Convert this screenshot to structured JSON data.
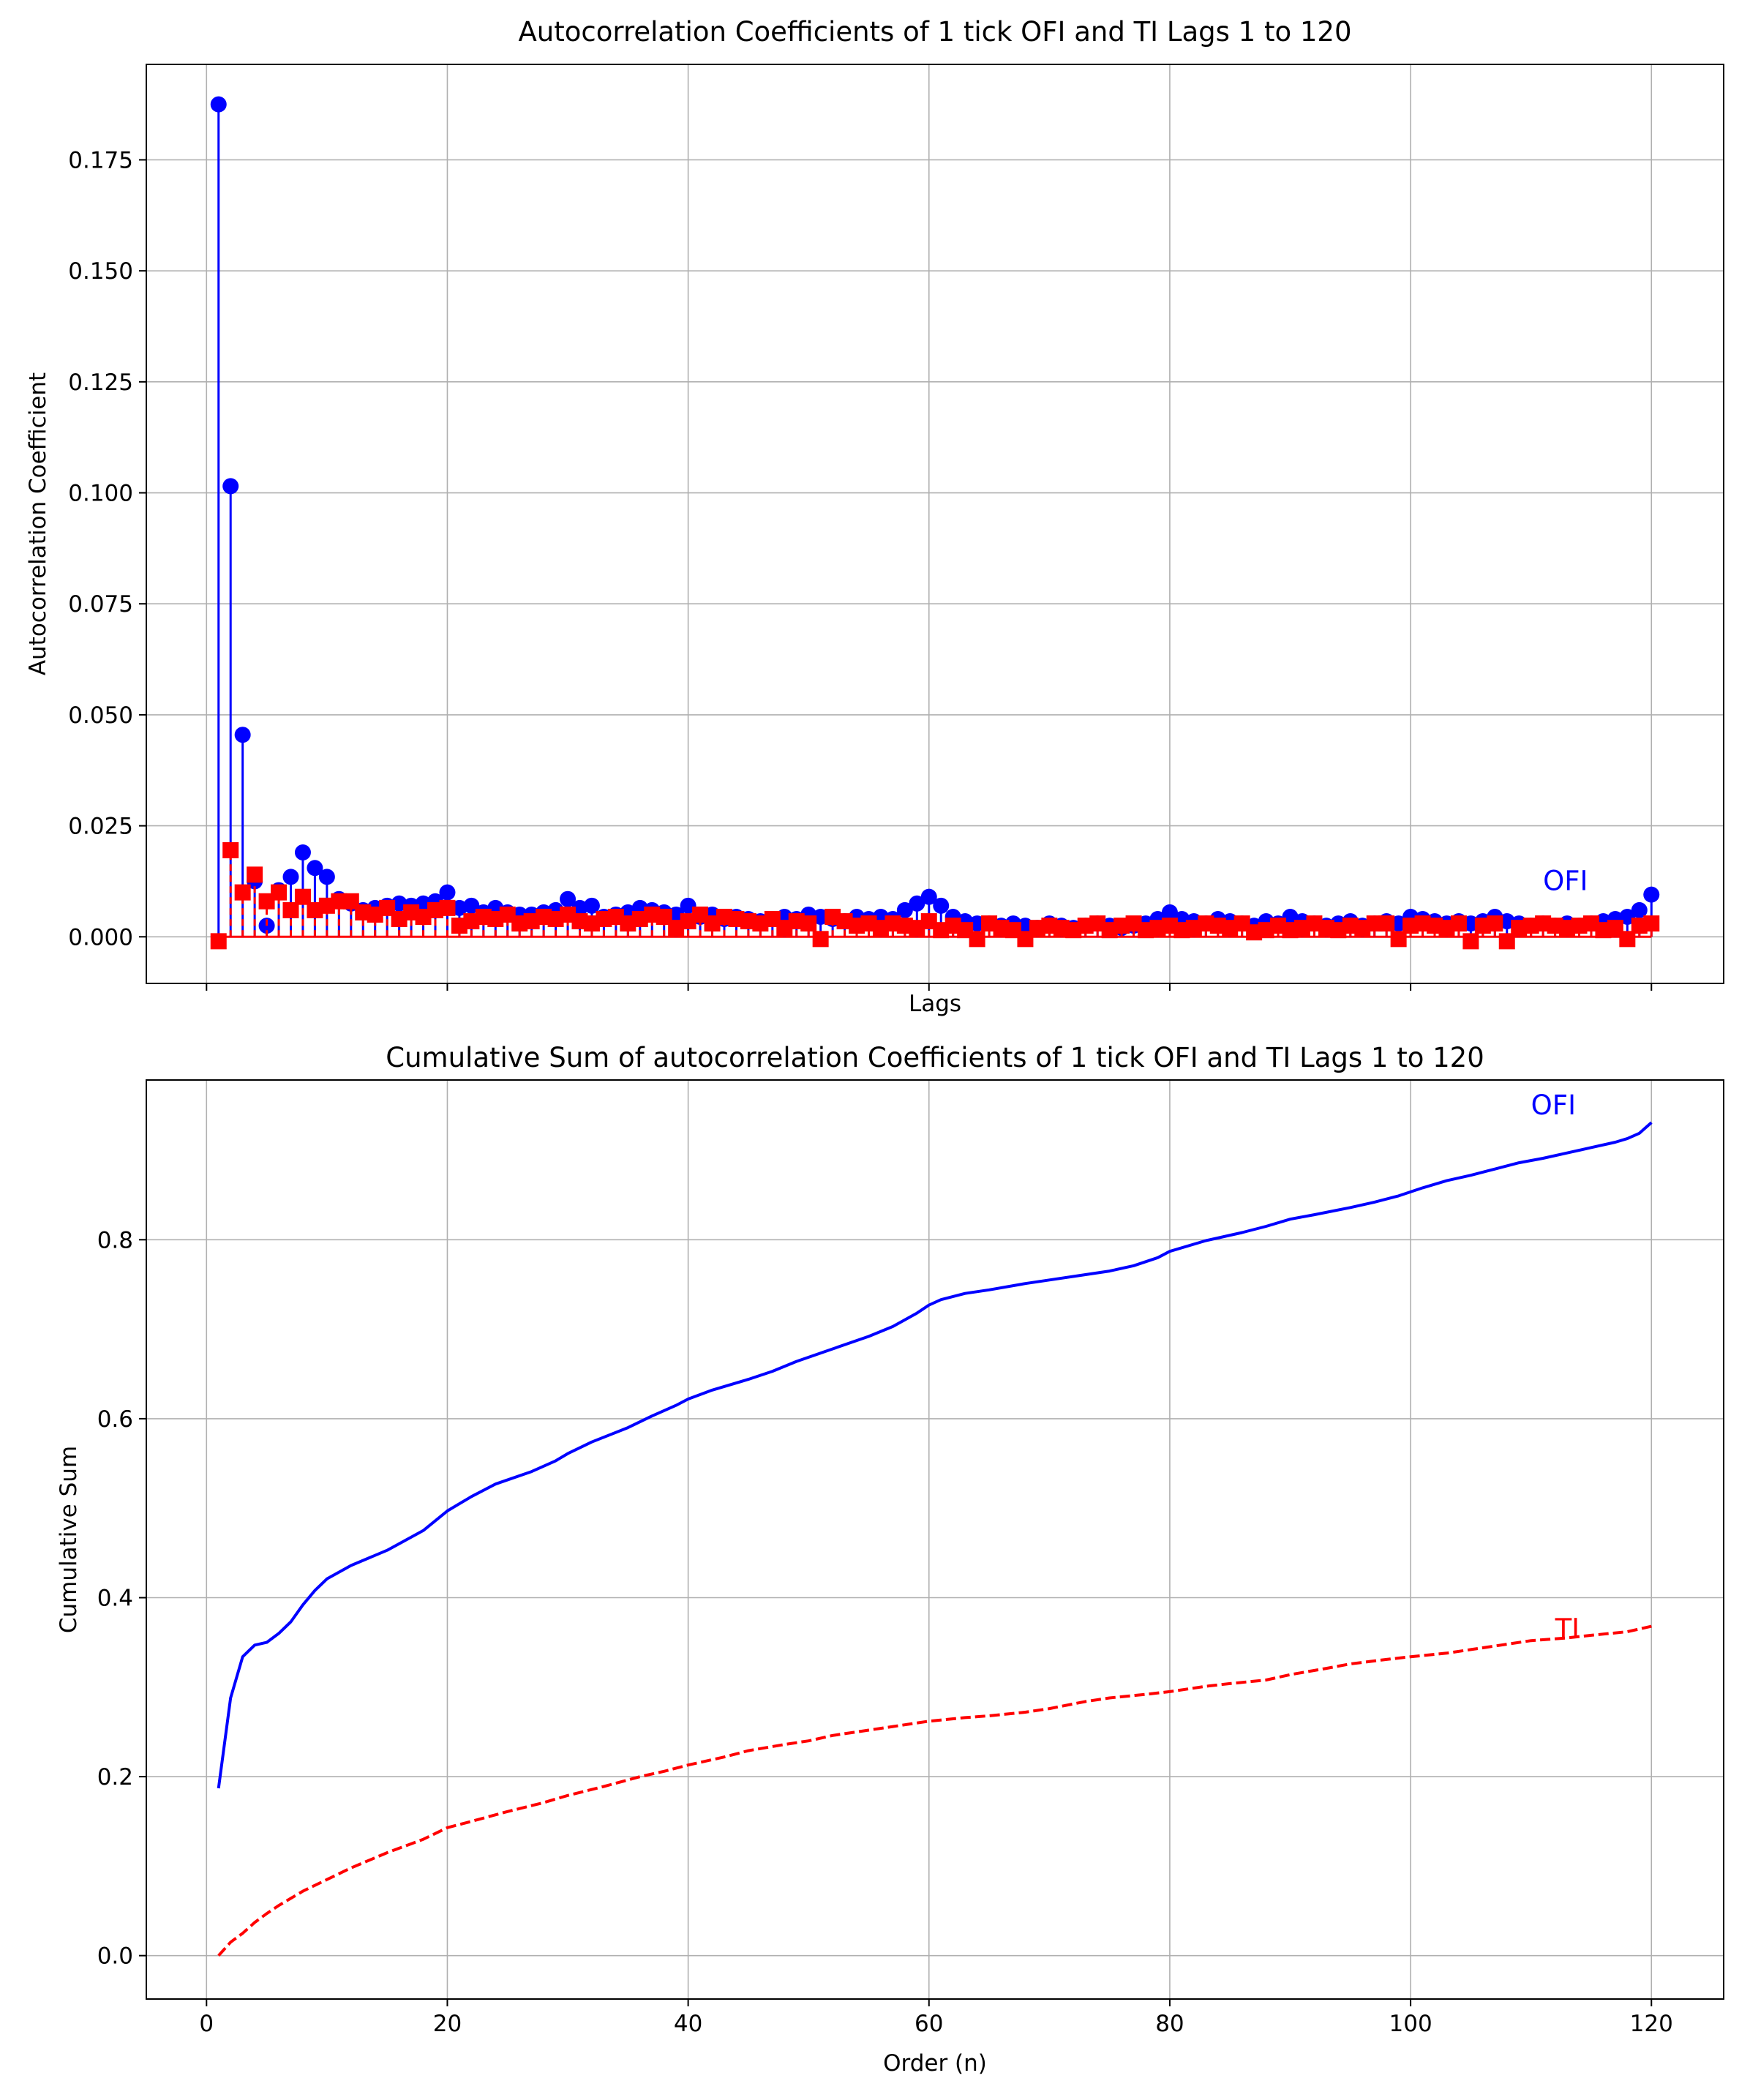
{
  "chart_data": [
    {
      "type": "stem",
      "title": "Autocorrelation Coefficients of 1 tick OFI and TI Lags 1 to 120",
      "xlabel": "Lags",
      "ylabel": "Autocorrelation Coefficient",
      "xlim": [
        -5,
        126
      ],
      "ylim": [
        -0.0105,
        0.1965
      ],
      "xticks": [
        0,
        20,
        40,
        60,
        80,
        100,
        120
      ],
      "show_xtick_labels": false,
      "yticks": [
        0.0,
        0.025,
        0.05,
        0.075,
        0.1,
        0.125,
        0.15,
        0.175
      ],
      "ytick_labels": [
        "0.000",
        "0.025",
        "0.050",
        "0.075",
        "0.100",
        "0.125",
        "0.150",
        "0.175"
      ],
      "grid": true,
      "annotations": [
        {
          "text": "OFI",
          "x": 111,
          "y": 0.0105,
          "color": "#0000ff"
        }
      ],
      "series": [
        {
          "name": "OFI",
          "color": "#0000ff",
          "marker": "circle",
          "x_start": 1,
          "values": [
            0.1875,
            0.1015,
            0.0455,
            0.0125,
            0.0025,
            0.0105,
            0.0135,
            0.019,
            0.0155,
            0.0135,
            0.0085,
            0.0075,
            0.006,
            0.0065,
            0.007,
            0.0075,
            0.007,
            0.0075,
            0.008,
            0.01,
            0.0065,
            0.007,
            0.0055,
            0.0065,
            0.0055,
            0.005,
            0.005,
            0.0055,
            0.006,
            0.0085,
            0.0065,
            0.007,
            0.0045,
            0.005,
            0.0055,
            0.0065,
            0.006,
            0.0055,
            0.005,
            0.007,
            0.0045,
            0.005,
            0.004,
            0.0045,
            0.004,
            0.0035,
            0.004,
            0.0045,
            0.004,
            0.005,
            0.0045,
            0.004,
            0.0035,
            0.0045,
            0.004,
            0.0045,
            0.004,
            0.006,
            0.0075,
            0.009,
            0.007,
            0.0045,
            0.0035,
            0.003,
            0.003,
            0.0025,
            0.003,
            0.0025,
            0.002,
            0.003,
            0.0025,
            0.002,
            0.0025,
            0.003,
            0.0025,
            0.002,
            0.0025,
            0.003,
            0.004,
            0.0055,
            0.004,
            0.0035,
            0.003,
            0.004,
            0.0035,
            0.003,
            0.0025,
            0.0035,
            0.003,
            0.0045,
            0.0035,
            0.003,
            0.0025,
            0.003,
            0.0035,
            0.0025,
            0.003,
            0.0035,
            0.003,
            0.0045,
            0.004,
            0.0035,
            0.003,
            0.0035,
            0.003,
            0.0035,
            0.0045,
            0.0035,
            0.003,
            0.0025,
            0.003,
            0.0025,
            0.003,
            0.0025,
            0.003,
            0.0035,
            0.004,
            0.0045,
            0.006,
            0.0095
          ]
        },
        {
          "name": "TI",
          "color": "#ff0000",
          "marker": "square",
          "x_start": 1,
          "values": [
            -0.001,
            0.0195,
            0.01,
            0.014,
            0.008,
            0.01,
            0.006,
            0.009,
            0.006,
            0.007,
            0.008,
            0.008,
            0.0055,
            0.005,
            0.0065,
            0.004,
            0.0055,
            0.0045,
            0.006,
            0.0065,
            0.0025,
            0.0035,
            0.0045,
            0.004,
            0.005,
            0.003,
            0.0035,
            0.0045,
            0.004,
            0.005,
            0.0035,
            0.003,
            0.004,
            0.0045,
            0.003,
            0.004,
            0.005,
            0.0045,
            0.002,
            0.0035,
            0.005,
            0.003,
            0.0045,
            0.004,
            0.0035,
            0.003,
            0.004,
            0.002,
            0.0035,
            0.003,
            -0.0005,
            0.0045,
            0.0035,
            0.0025,
            0.003,
            0.002,
            0.003,
            0.0025,
            0.002,
            0.0035,
            0.0015,
            0.0025,
            0.0015,
            -0.0005,
            0.003,
            0.002,
            0.0015,
            -0.0005,
            0.002,
            0.0025,
            0.002,
            0.0015,
            0.0025,
            0.003,
            0.0015,
            0.0025,
            0.003,
            0.0015,
            0.002,
            0.0025,
            0.0015,
            0.002,
            0.003,
            0.0025,
            0.002,
            0.003,
            0.001,
            0.0015,
            0.0025,
            0.0015,
            0.002,
            0.003,
            0.002,
            0.0015,
            0.0025,
            0.002,
            0.003,
            0.003,
            -0.0005,
            0.0025,
            0.003,
            0.0025,
            0.002,
            0.003,
            -0.001,
            0.0025,
            0.003,
            -0.001,
            0.002,
            0.0025,
            0.003,
            0.0025,
            0.002,
            0.0025,
            0.003,
            0.0015,
            0.002,
            -0.0005,
            0.0025,
            0.003
          ]
        }
      ]
    },
    {
      "type": "line",
      "title": "Cumulative Sum of autocorrelation Coefficients of 1 tick OFI and TI Lags 1 to 120",
      "xlabel": "Order (n)",
      "ylabel": "Cumulative Sum",
      "xlim": [
        -5,
        126
      ],
      "ylim": [
        -0.0485,
        0.9785
      ],
      "xticks": [
        0,
        20,
        40,
        60,
        80,
        100,
        120
      ],
      "show_xtick_labels": true,
      "yticks": [
        0.0,
        0.2,
        0.4,
        0.6,
        0.8
      ],
      "ytick_labels": [
        "0.0",
        "0.2",
        "0.4",
        "0.6",
        "0.8"
      ],
      "grid": true,
      "annotations": [
        {
          "text": "OFI",
          "x": 110,
          "y": 0.94,
          "color": "#0000ff"
        },
        {
          "text": "TI",
          "x": 112,
          "y": 0.355,
          "color": "#ff0000"
        }
      ],
      "series": [
        {
          "name": "OFI",
          "color": "#0000ff",
          "linestyle": "solid",
          "points": [
            [
              1,
              0.187
            ],
            [
              2,
              0.288
            ],
            [
              3,
              0.334
            ],
            [
              4,
              0.347
            ],
            [
              5,
              0.35
            ],
            [
              6,
              0.36
            ],
            [
              7,
              0.373
            ],
            [
              8,
              0.392
            ],
            [
              9,
              0.408
            ],
            [
              10,
              0.421
            ],
            [
              12,
              0.436
            ],
            [
              15,
              0.453
            ],
            [
              18,
              0.475
            ],
            [
              20,
              0.497
            ],
            [
              22,
              0.513
            ],
            [
              24,
              0.527
            ],
            [
              27,
              0.541
            ],
            [
              29,
              0.553
            ],
            [
              30,
              0.561
            ],
            [
              32,
              0.574
            ],
            [
              35,
              0.59
            ],
            [
              37,
              0.603
            ],
            [
              39,
              0.615
            ],
            [
              40,
              0.622
            ],
            [
              42,
              0.632
            ],
            [
              45,
              0.644
            ],
            [
              47,
              0.653
            ],
            [
              49,
              0.664
            ],
            [
              52,
              0.678
            ],
            [
              55,
              0.692
            ],
            [
              57,
              0.703
            ],
            [
              59,
              0.718
            ],
            [
              60,
              0.727
            ],
            [
              61,
              0.733
            ],
            [
              63,
              0.74
            ],
            [
              65,
              0.744
            ],
            [
              68,
              0.751
            ],
            [
              70,
              0.755
            ],
            [
              73,
              0.761
            ],
            [
              75,
              0.765
            ],
            [
              77,
              0.771
            ],
            [
              79,
              0.78
            ],
            [
              80,
              0.787
            ],
            [
              83,
              0.799
            ],
            [
              86,
              0.808
            ],
            [
              88,
              0.815
            ],
            [
              90,
              0.823
            ],
            [
              92,
              0.828
            ],
            [
              95,
              0.836
            ],
            [
              97,
              0.842
            ],
            [
              99,
              0.849
            ],
            [
              101,
              0.858
            ],
            [
              103,
              0.866
            ],
            [
              105,
              0.872
            ],
            [
              107,
              0.879
            ],
            [
              109,
              0.886
            ],
            [
              111,
              0.891
            ],
            [
              113,
              0.897
            ],
            [
              115,
              0.903
            ],
            [
              117,
              0.909
            ],
            [
              118,
              0.913
            ],
            [
              119,
              0.919
            ],
            [
              120,
              0.931
            ]
          ]
        },
        {
          "name": "TI",
          "color": "#ff0000",
          "linestyle": "dashed",
          "points": [
            [
              1,
              0.0
            ],
            [
              2,
              0.015
            ],
            [
              3,
              0.025
            ],
            [
              4,
              0.037
            ],
            [
              5,
              0.047
            ],
            [
              6,
              0.056
            ],
            [
              7,
              0.064
            ],
            [
              8,
              0.072
            ],
            [
              10,
              0.085
            ],
            [
              12,
              0.098
            ],
            [
              15,
              0.115
            ],
            [
              18,
              0.13
            ],
            [
              20,
              0.143
            ],
            [
              22,
              0.15
            ],
            [
              25,
              0.161
            ],
            [
              28,
              0.171
            ],
            [
              30,
              0.179
            ],
            [
              33,
              0.189
            ],
            [
              36,
              0.2
            ],
            [
              38,
              0.206
            ],
            [
              40,
              0.213
            ],
            [
              43,
              0.222
            ],
            [
              45,
              0.229
            ],
            [
              48,
              0.236
            ],
            [
              50,
              0.24
            ],
            [
              52,
              0.246
            ],
            [
              55,
              0.252
            ],
            [
              57,
              0.256
            ],
            [
              60,
              0.262
            ],
            [
              63,
              0.266
            ],
            [
              65,
              0.268
            ],
            [
              68,
              0.272
            ],
            [
              70,
              0.276
            ],
            [
              73,
              0.284
            ],
            [
              75,
              0.288
            ],
            [
              78,
              0.292
            ],
            [
              80,
              0.295
            ],
            [
              83,
              0.301
            ],
            [
              85,
              0.304
            ],
            [
              88,
              0.308
            ],
            [
              90,
              0.314
            ],
            [
              93,
              0.321
            ],
            [
              95,
              0.326
            ],
            [
              98,
              0.331
            ],
            [
              100,
              0.334
            ],
            [
              103,
              0.338
            ],
            [
              105,
              0.342
            ],
            [
              108,
              0.348
            ],
            [
              110,
              0.352
            ],
            [
              113,
              0.355
            ],
            [
              115,
              0.358
            ],
            [
              118,
              0.362
            ],
            [
              120,
              0.368
            ]
          ]
        }
      ]
    }
  ]
}
